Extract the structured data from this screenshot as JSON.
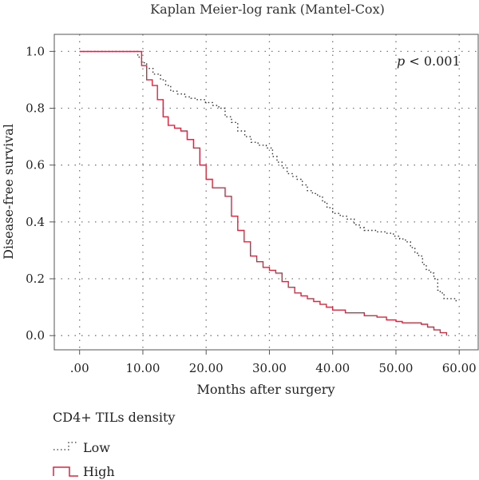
{
  "chart_data": {
    "type": "line",
    "title": "Kaplan Meier-log rank (Mantel-Cox)",
    "xlabel": "Months after surgery",
    "ylabel": "Disease-free survival",
    "xlim": [
      -4,
      63
    ],
    "ylim": [
      -0.05,
      1.06
    ],
    "xticks": [
      0,
      10,
      20,
      30,
      40,
      50,
      60
    ],
    "xtick_labels": [
      ".00",
      "10.00",
      "20.00",
      "30.00",
      "40.00",
      "50.00",
      "60.00"
    ],
    "yticks": [
      0.0,
      0.2,
      0.4,
      0.6,
      0.8,
      1.0
    ],
    "ytick_labels": [
      "0.0",
      "0.2",
      "0.4",
      "0.6",
      "0.8",
      "1.0"
    ],
    "grid": true,
    "annotation": {
      "text": "p < 0.001",
      "italic_part": "p",
      "rest": " < 0.001"
    },
    "step": true,
    "series": [
      {
        "name": "Low",
        "style": "dotted",
        "color": "#333333",
        "x": [
          0,
          9.2,
          9.8,
          10.6,
          11.6,
          12.8,
          13.6,
          14.4,
          15.5,
          16.6,
          17.6,
          18.6,
          19.9,
          21.0,
          22.0,
          23.0,
          24.0,
          25.0,
          26.1,
          27.1,
          28.2,
          29.5,
          30.5,
          31.2,
          32.0,
          32.8,
          33.6,
          34.4,
          35.2,
          36.0,
          36.8,
          37.6,
          38.4,
          39.1,
          40.0,
          41.2,
          42.3,
          43.4,
          44.2,
          45.0,
          47.0,
          48.4,
          49.6,
          50.6,
          51.5,
          52.3,
          53.0,
          53.6,
          54.2,
          54.8,
          55.5,
          56.0,
          56.6,
          57.0,
          57.6,
          59.5
        ],
        "y": [
          1.0,
          0.98,
          0.96,
          0.94,
          0.92,
          0.9,
          0.88,
          0.86,
          0.85,
          0.84,
          0.835,
          0.83,
          0.82,
          0.81,
          0.8,
          0.77,
          0.75,
          0.72,
          0.7,
          0.68,
          0.67,
          0.66,
          0.63,
          0.61,
          0.59,
          0.57,
          0.56,
          0.55,
          0.53,
          0.51,
          0.5,
          0.49,
          0.47,
          0.45,
          0.43,
          0.42,
          0.41,
          0.39,
          0.38,
          0.37,
          0.365,
          0.36,
          0.35,
          0.34,
          0.33,
          0.31,
          0.29,
          0.28,
          0.25,
          0.23,
          0.22,
          0.2,
          0.16,
          0.15,
          0.13,
          0.12
        ]
      },
      {
        "name": "High",
        "style": "solid",
        "color": "#d8283f",
        "x": [
          0,
          9.8,
          10.6,
          11.5,
          12.3,
          13.2,
          14.0,
          15.0,
          16.0,
          17.0,
          18.0,
          19.0,
          20.0,
          21.0,
          22.0,
          23.0,
          24.0,
          25.0,
          26.0,
          27.0,
          28.0,
          29.0,
          30.0,
          31.0,
          32.0,
          33.0,
          34.0,
          35.0,
          36.0,
          37.0,
          38.0,
          39.0,
          40.0,
          41.0,
          42.0,
          43.0,
          44.0,
          45.0,
          46.0,
          47.0,
          48.5,
          50.0,
          51.0,
          52.0,
          53.0,
          54.0,
          55.0,
          56.0,
          57.0,
          58.0
        ],
        "y": [
          1.0,
          0.95,
          0.9,
          0.88,
          0.83,
          0.77,
          0.74,
          0.73,
          0.72,
          0.69,
          0.66,
          0.6,
          0.55,
          0.52,
          0.52,
          0.49,
          0.42,
          0.37,
          0.33,
          0.28,
          0.26,
          0.24,
          0.23,
          0.22,
          0.19,
          0.17,
          0.15,
          0.14,
          0.13,
          0.12,
          0.11,
          0.1,
          0.09,
          0.09,
          0.08,
          0.08,
          0.08,
          0.07,
          0.07,
          0.065,
          0.055,
          0.05,
          0.045,
          0.045,
          0.045,
          0.04,
          0.03,
          0.02,
          0.01,
          0.0
        ]
      }
    ]
  },
  "legend": {
    "title": "CD4+ TILs density",
    "items": [
      {
        "label": "Low",
        "style": "dotted",
        "color": "#333333"
      },
      {
        "label": "High",
        "style": "solid",
        "color": "#d8283f"
      }
    ]
  }
}
